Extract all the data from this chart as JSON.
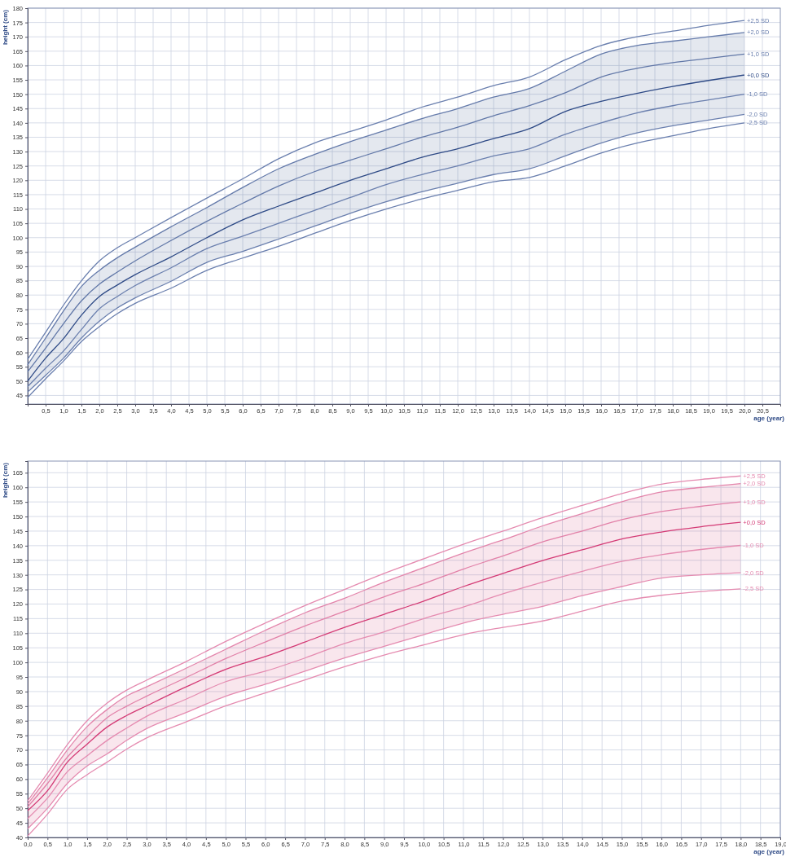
{
  "chart_data": [
    {
      "type": "line",
      "xlabel": "age (year)",
      "ylabel": "height (cm)",
      "grid": true,
      "x": [
        0,
        0.5,
        1,
        1.5,
        2,
        2.5,
        3,
        4,
        5,
        6,
        7,
        8,
        9,
        10,
        11,
        12,
        13,
        14,
        15,
        16,
        17,
        18,
        19,
        20
      ],
      "xlim": [
        0,
        21
      ],
      "ylim": [
        42,
        180
      ],
      "xticks": [
        {
          "value": 0,
          "label": null
        },
        {
          "value": 0.5,
          "label": "0,5"
        },
        {
          "value": 1,
          "label": "1,0"
        },
        {
          "value": 1.5,
          "label": "1,5"
        },
        {
          "value": 2,
          "label": "2,0"
        },
        {
          "value": 2.5,
          "label": "2,5"
        },
        {
          "value": 3,
          "label": "3,0"
        },
        {
          "value": 3.5,
          "label": "3,5"
        },
        {
          "value": 4,
          "label": "4,0"
        },
        {
          "value": 4.5,
          "label": "4,5"
        },
        {
          "value": 5,
          "label": "5,0"
        },
        {
          "value": 5.5,
          "label": "5,5"
        },
        {
          "value": 6,
          "label": "6,0"
        },
        {
          "value": 6.5,
          "label": "6,5"
        },
        {
          "value": 7,
          "label": "7,0"
        },
        {
          "value": 7.5,
          "label": "7,5"
        },
        {
          "value": 8,
          "label": "8,0"
        },
        {
          "value": 8.5,
          "label": "8,5"
        },
        {
          "value": 9,
          "label": "9,0"
        },
        {
          "value": 9.5,
          "label": "9,5"
        },
        {
          "value": 10,
          "label": "10,0"
        },
        {
          "value": 10.5,
          "label": "10,5"
        },
        {
          "value": 11,
          "label": "11,0"
        },
        {
          "value": 11.5,
          "label": "11,5"
        },
        {
          "value": 12,
          "label": "12,0"
        },
        {
          "value": 12.5,
          "label": "12,5"
        },
        {
          "value": 13,
          "label": "13,0"
        },
        {
          "value": 13.5,
          "label": "13,5"
        },
        {
          "value": 14,
          "label": "14,0"
        },
        {
          "value": 14.5,
          "label": "14,5"
        },
        {
          "value": 15,
          "label": "15,0"
        },
        {
          "value": 15.5,
          "label": "15,5"
        },
        {
          "value": 16,
          "label": "16,0"
        },
        {
          "value": 16.5,
          "label": "16,5"
        },
        {
          "value": 17,
          "label": "17,0"
        },
        {
          "value": 17.5,
          "label": "17,5"
        },
        {
          "value": 18,
          "label": "18,0"
        },
        {
          "value": 18.5,
          "label": "18,5"
        },
        {
          "value": 19,
          "label": "19,0"
        },
        {
          "value": 19.5,
          "label": "19,5"
        },
        {
          "value": 20,
          "label": "20,0"
        },
        {
          "value": 20.5,
          "label": "20,5"
        }
      ],
      "yticks": [
        45,
        50,
        55,
        60,
        65,
        70,
        75,
        80,
        85,
        90,
        95,
        100,
        105,
        110,
        115,
        120,
        125,
        130,
        135,
        140,
        145,
        150,
        155,
        160,
        165,
        170,
        175,
        180
      ],
      "series": [
        {
          "name": "+2,5 SD",
          "color": "#6a7fae",
          "values": [
            57.6,
            67,
            76.5,
            85,
            91.9,
            96.5,
            100,
            107,
            113.8,
            120.5,
            127.5,
            133,
            137,
            141,
            145.5,
            149,
            153,
            156,
            162,
            167,
            170,
            172,
            174,
            175.7
          ]
        },
        {
          "name": "+2,0 SD",
          "color": "#6a7fae",
          "values": [
            55.7,
            65,
            74.5,
            83,
            88.6,
            93,
            96.7,
            103.8,
            110.5,
            117.5,
            124,
            129,
            133.5,
            137.5,
            141.5,
            145,
            149,
            152,
            158,
            164,
            167,
            168.5,
            170,
            171.5
          ]
        },
        {
          "name": "+1,0 SD",
          "color": "#6a7fae",
          "values": [
            53.3,
            61.5,
            70,
            78,
            83.8,
            88,
            91.9,
            99,
            105.7,
            112,
            118,
            123,
            127,
            131,
            135,
            138.5,
            142.5,
            146,
            150.5,
            156,
            159,
            161,
            162.5,
            164
          ]
        },
        {
          "name": "+0,0 SD",
          "color": "#2e4a86",
          "values": [
            50,
            58,
            64.8,
            73,
            79.5,
            83.5,
            87.1,
            93.3,
            100,
            106.2,
            111,
            115.5,
            120,
            124,
            128,
            131,
            134.5,
            138,
            144,
            147.5,
            150.3,
            152.7,
            154.8,
            156.7
          ],
          "lower": [
            46.2,
            52,
            58,
            65,
            70.9,
            75.5,
            79,
            84.8,
            91.4,
            95.2,
            99.5,
            104,
            108.5,
            112.5,
            116,
            119,
            122,
            124,
            128.5,
            133,
            136.5,
            139,
            141,
            143
          ],
          "upper": [
            55.7,
            65,
            74.5,
            83,
            88.6,
            93,
            96.7,
            103.8,
            110.5,
            117.5,
            124,
            129,
            133.5,
            137.5,
            141.5,
            145,
            149,
            152,
            158,
            164,
            167,
            168.5,
            170,
            171.5
          ]
        },
        {
          "name": "-1,0 SD",
          "color": "#6a7fae",
          "values": [
            48.1,
            54.5,
            60.5,
            68,
            75.2,
            79.5,
            83.3,
            89.5,
            96.2,
            100.5,
            105,
            109.5,
            114,
            118.5,
            122,
            125,
            128.5,
            131,
            136,
            140,
            143.5,
            146,
            148,
            150
          ]
        },
        {
          "name": "-2,0 SD",
          "color": "#6a7fae",
          "values": [
            46.2,
            52,
            58,
            65,
            70.9,
            75.5,
            79,
            84.8,
            91.4,
            95.2,
            99.5,
            104,
            108.5,
            112.5,
            116,
            119,
            122,
            124,
            128.5,
            133,
            136.5,
            139,
            141,
            143
          ]
        },
        {
          "name": "-2,5 SD",
          "color": "#6a7fae",
          "values": [
            44.3,
            50.8,
            57,
            63.8,
            69,
            73.5,
            77.1,
            82.4,
            88.6,
            92.9,
            97,
            101.5,
            106,
            110,
            113.5,
            116.5,
            119.5,
            121,
            125,
            129.5,
            133,
            135.5,
            138,
            140
          ]
        }
      ]
    },
    {
      "type": "line",
      "xlabel": "age (year)",
      "ylabel": "height (cm)",
      "grid": true,
      "x": [
        0,
        0.5,
        1,
        1.5,
        2,
        2.5,
        3,
        4,
        5,
        6,
        7,
        8,
        9,
        10,
        11,
        12,
        13,
        14,
        15,
        16,
        17,
        18
      ],
      "xlim": [
        0,
        19
      ],
      "ylim": [
        40,
        169
      ],
      "xticks": [
        {
          "value": 0,
          "label": "0,0"
        },
        {
          "value": 0.5,
          "label": "0,5"
        },
        {
          "value": 1,
          "label": "1,0"
        },
        {
          "value": 1.5,
          "label": "1,5"
        },
        {
          "value": 2,
          "label": "2,0"
        },
        {
          "value": 2.5,
          "label": "2,5"
        },
        {
          "value": 3,
          "label": "3,0"
        },
        {
          "value": 3.5,
          "label": "3,5"
        },
        {
          "value": 4,
          "label": "4,0"
        },
        {
          "value": 4.5,
          "label": "4,5"
        },
        {
          "value": 5,
          "label": "5,0"
        },
        {
          "value": 5.5,
          "label": "5,5"
        },
        {
          "value": 6,
          "label": "6,0"
        },
        {
          "value": 6.5,
          "label": "6,5"
        },
        {
          "value": 7,
          "label": "7,0"
        },
        {
          "value": 7.5,
          "label": "7,5"
        },
        {
          "value": 8,
          "label": "8,0"
        },
        {
          "value": 8.5,
          "label": "8,5"
        },
        {
          "value": 9,
          "label": "9,0"
        },
        {
          "value": 9.5,
          "label": "9,5"
        },
        {
          "value": 10,
          "label": "10,0"
        },
        {
          "value": 10.5,
          "label": "10,5"
        },
        {
          "value": 11,
          "label": "11,0"
        },
        {
          "value": 11.5,
          "label": "11,5"
        },
        {
          "value": 12,
          "label": "12,0"
        },
        {
          "value": 12.5,
          "label": "12,5"
        },
        {
          "value": 13,
          "label": "13,0"
        },
        {
          "value": 13.5,
          "label": "13,5"
        },
        {
          "value": 14,
          "label": "14,0"
        },
        {
          "value": 14.5,
          "label": "14,5"
        },
        {
          "value": 15,
          "label": "15,0"
        },
        {
          "value": 15.5,
          "label": "15,5"
        },
        {
          "value": 16,
          "label": "16,0"
        },
        {
          "value": 16.5,
          "label": "16,5"
        },
        {
          "value": 17,
          "label": "17,0"
        },
        {
          "value": 17.5,
          "label": "17,5"
        },
        {
          "value": 18,
          "label": "18,0"
        },
        {
          "value": 18.5,
          "label": "18,5"
        },
        {
          "value": 19,
          "label": "19,0"
        }
      ],
      "yticks": [
        40,
        45,
        50,
        55,
        60,
        65,
        70,
        75,
        80,
        85,
        90,
        95,
        100,
        105,
        110,
        115,
        120,
        125,
        130,
        135,
        140,
        145,
        150,
        155,
        160,
        165
      ],
      "series": [
        {
          "name": "+2,5 SD",
          "color": "#e58bb0",
          "values": [
            52.5,
            62,
            71.8,
            80,
            86,
            90.5,
            93.9,
            100.3,
            107.2,
            113.5,
            119.5,
            125,
            130.5,
            135.5,
            140.5,
            145,
            149.6,
            153.8,
            157.9,
            161.1,
            162.7,
            163.9
          ]
        },
        {
          "name": "+2,0 SD",
          "color": "#e58bb0",
          "values": [
            51.5,
            60.5,
            70,
            78,
            83.8,
            88.5,
            91.6,
            98,
            104.5,
            111,
            117,
            122,
            127.5,
            132.5,
            137.5,
            142,
            146.8,
            151,
            155.1,
            158.4,
            160,
            161.3
          ]
        },
        {
          "name": "+1,0 SD",
          "color": "#e58bb0",
          "values": [
            50.5,
            58.5,
            67.5,
            74.5,
            81,
            85,
            88.4,
            94.8,
            101.3,
            107,
            112.5,
            117.5,
            122.5,
            127,
            132,
            136.5,
            141.3,
            145,
            148.9,
            151.7,
            153.5,
            155
          ]
        },
        {
          "name": "+0,0 SD",
          "color": "#d43a75",
          "values": [
            49.2,
            56,
            65.8,
            72,
            77.8,
            81.8,
            85.1,
            91.6,
            97.6,
            102,
            107,
            112,
            116.5,
            121,
            126,
            130.5,
            134.9,
            138.6,
            142.3,
            144.7,
            146.5,
            148
          ],
          "lower": [
            43,
            50,
            58.5,
            64.5,
            68.6,
            73.3,
            77.3,
            82.8,
            88.4,
            92.5,
            97,
            101.5,
            105.5,
            109.5,
            113.5,
            116.5,
            119.2,
            122.9,
            126,
            128.9,
            130,
            130.7
          ],
          "upper": [
            51.5,
            60.5,
            70,
            78,
            83.8,
            88.5,
            91.6,
            98,
            104.5,
            111,
            117,
            122,
            127.5,
            132.5,
            137.5,
            142,
            146.8,
            151,
            155.1,
            158.4,
            160,
            161.3
          ]
        },
        {
          "name": "-1,0 SD",
          "color": "#e58bb0",
          "values": [
            46.5,
            53.5,
            62.5,
            68,
            73.2,
            77.5,
            81.5,
            87.4,
            93.4,
            97,
            101.5,
            106.5,
            110.5,
            115,
            119,
            123.5,
            127.5,
            131.2,
            134.6,
            136.9,
            138.7,
            140.1
          ]
        },
        {
          "name": "-2,0 SD",
          "color": "#e58bb0",
          "values": [
            43,
            50,
            58.5,
            64.5,
            68.6,
            73.3,
            77.3,
            82.8,
            88.4,
            92.5,
            97,
            101.5,
            105.5,
            109.5,
            113.5,
            116.5,
            119.2,
            122.9,
            126,
            128.9,
            130,
            130.7
          ]
        },
        {
          "name": "-2,5 SD",
          "color": "#e58bb0",
          "values": [
            40.5,
            48,
            56.5,
            61.5,
            65.8,
            70.3,
            74.1,
            79.6,
            85.1,
            89.5,
            94,
            98.5,
            102.5,
            106,
            109.5,
            112,
            114.2,
            117.6,
            121,
            123,
            124.3,
            125.2
          ]
        }
      ]
    }
  ]
}
